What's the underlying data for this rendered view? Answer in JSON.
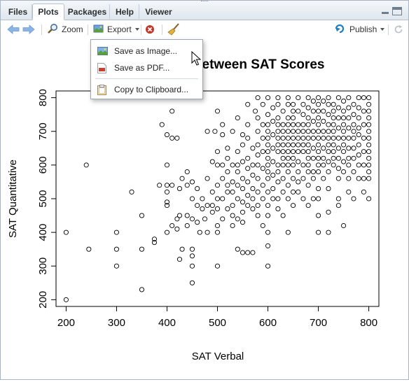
{
  "tabs": [
    {
      "label": "Files",
      "active": false
    },
    {
      "label": "Plots",
      "active": true
    },
    {
      "label": "Packages",
      "active": false
    },
    {
      "label": "Help",
      "active": false
    },
    {
      "label": "Viewer",
      "active": false
    }
  ],
  "toolbar": {
    "zoom_label": "Zoom",
    "export_label": "Export",
    "publish_label": "Publish",
    "icons": [
      "back-arrow-icon",
      "forward-arrow-icon",
      "zoom-icon",
      "export-icon",
      "remove-plot-icon",
      "clear-all-broom-icon",
      "publish-icon",
      "refresh-icon"
    ]
  },
  "export_menu": {
    "items": [
      {
        "label": "Save as Image...",
        "icon": "image-icon"
      },
      {
        "label": "Save as PDF...",
        "icon": "pdf-icon"
      },
      {
        "label": "Copy to Clipboard...",
        "icon": "clipboard-icon"
      }
    ]
  },
  "colors": {
    "accent_blue": "#3a7bd5",
    "remove_red": "#c0392b",
    "publish_blue": "#1e7fc3"
  },
  "chart_data": {
    "type": "scatter",
    "title": "Relationship between SAT Scores",
    "title_visible": "etween SAT Scores",
    "xlabel": "SAT Verbal",
    "ylabel": "SAT Quantitative",
    "xlim": [
      180,
      820
    ],
    "ylim": [
      180,
      820
    ],
    "xticks": [
      "200",
      "300",
      "400",
      "500",
      "600",
      "700",
      "800"
    ],
    "yticks": [
      "200",
      "300",
      "400",
      "500",
      "600",
      "700",
      "800"
    ],
    "marker": "open-circle",
    "points": [
      [
        200,
        200
      ],
      [
        200,
        400
      ],
      [
        245,
        350
      ],
      [
        240,
        600
      ],
      [
        300,
        400
      ],
      [
        300,
        350
      ],
      [
        300,
        300
      ],
      [
        330,
        520
      ],
      [
        350,
        450
      ],
      [
        350,
        350
      ],
      [
        350,
        230
      ],
      [
        375,
        380
      ],
      [
        375,
        370
      ],
      [
        385,
        540
      ],
      [
        390,
        720
      ],
      [
        400,
        690
      ],
      [
        400,
        600
      ],
      [
        400,
        540
      ],
      [
        400,
        520
      ],
      [
        400,
        490
      ],
      [
        400,
        480
      ],
      [
        400,
        400
      ],
      [
        410,
        760
      ],
      [
        410,
        680
      ],
      [
        410,
        540
      ],
      [
        410,
        420
      ],
      [
        420,
        680
      ],
      [
        420,
        440
      ],
      [
        420,
        410
      ],
      [
        425,
        530
      ],
      [
        425,
        450
      ],
      [
        425,
        320
      ],
      [
        430,
        560
      ],
      [
        430,
        350
      ],
      [
        440,
        580
      ],
      [
        440,
        540
      ],
      [
        440,
        450
      ],
      [
        440,
        420
      ],
      [
        450,
        550
      ],
      [
        450,
        500
      ],
      [
        450,
        440
      ],
      [
        450,
        350
      ],
      [
        450,
        330
      ],
      [
        450,
        300
      ],
      [
        450,
        250
      ],
      [
        460,
        530
      ],
      [
        460,
        480
      ],
      [
        460,
        430
      ],
      [
        465,
        400
      ],
      [
        470,
        500
      ],
      [
        470,
        470
      ],
      [
        475,
        440
      ],
      [
        480,
        700
      ],
      [
        480,
        560
      ],
      [
        480,
        480
      ],
      [
        480,
        400
      ],
      [
        490,
        610
      ],
      [
        490,
        520
      ],
      [
        490,
        480
      ],
      [
        490,
        460
      ],
      [
        495,
        700
      ],
      [
        500,
        760
      ],
      [
        500,
        640
      ],
      [
        500,
        600
      ],
      [
        500,
        540
      ],
      [
        500,
        500
      ],
      [
        500,
        470
      ],
      [
        500,
        420
      ],
      [
        500,
        400
      ],
      [
        500,
        300
      ],
      [
        510,
        720
      ],
      [
        510,
        690
      ],
      [
        510,
        600
      ],
      [
        510,
        560
      ],
      [
        510,
        500
      ],
      [
        510,
        440
      ],
      [
        520,
        650
      ],
      [
        520,
        620
      ],
      [
        520,
        580
      ],
      [
        520,
        540
      ],
      [
        520,
        520
      ],
      [
        520,
        470
      ],
      [
        530,
        700
      ],
      [
        530,
        600
      ],
      [
        530,
        550
      ],
      [
        530,
        520
      ],
      [
        530,
        480
      ],
      [
        530,
        450
      ],
      [
        530,
        420
      ],
      [
        540,
        740
      ],
      [
        540,
        640
      ],
      [
        540,
        600
      ],
      [
        540,
        580
      ],
      [
        540,
        540
      ],
      [
        540,
        500
      ],
      [
        540,
        440
      ],
      [
        540,
        350
      ],
      [
        550,
        690
      ],
      [
        550,
        660
      ],
      [
        550,
        610
      ],
      [
        550,
        560
      ],
      [
        550,
        530
      ],
      [
        550,
        490
      ],
      [
        550,
        460
      ],
      [
        550,
        430
      ],
      [
        550,
        340
      ],
      [
        560,
        780
      ],
      [
        560,
        720
      ],
      [
        560,
        680
      ],
      [
        560,
        620
      ],
      [
        560,
        590
      ],
      [
        560,
        550
      ],
      [
        560,
        510
      ],
      [
        560,
        480
      ],
      [
        560,
        340
      ],
      [
        570,
        650
      ],
      [
        570,
        600
      ],
      [
        570,
        570
      ],
      [
        570,
        530
      ],
      [
        570,
        500
      ],
      [
        570,
        470
      ],
      [
        570,
        340
      ],
      [
        575,
        760
      ],
      [
        580,
        800
      ],
      [
        580,
        740
      ],
      [
        580,
        700
      ],
      [
        580,
        660
      ],
      [
        580,
        630
      ],
      [
        580,
        600
      ],
      [
        580,
        560
      ],
      [
        580,
        520
      ],
      [
        580,
        480
      ],
      [
        580,
        450
      ],
      [
        590,
        780
      ],
      [
        590,
        720
      ],
      [
        590,
        680
      ],
      [
        590,
        640
      ],
      [
        590,
        590
      ],
      [
        590,
        540
      ],
      [
        590,
        500
      ],
      [
        590,
        420
      ],
      [
        600,
        800
      ],
      [
        600,
        750
      ],
      [
        600,
        720
      ],
      [
        600,
        700
      ],
      [
        600,
        680
      ],
      [
        600,
        660
      ],
      [
        600,
        640
      ],
      [
        600,
        620
      ],
      [
        600,
        600
      ],
      [
        600,
        580
      ],
      [
        600,
        560
      ],
      [
        600,
        520
      ],
      [
        600,
        480
      ],
      [
        600,
        450
      ],
      [
        600,
        400
      ],
      [
        600,
        360
      ],
      [
        600,
        300
      ],
      [
        610,
        770
      ],
      [
        610,
        730
      ],
      [
        610,
        690
      ],
      [
        610,
        650
      ],
      [
        610,
        610
      ],
      [
        610,
        570
      ],
      [
        610,
        530
      ],
      [
        610,
        500
      ],
      [
        620,
        800
      ],
      [
        620,
        780
      ],
      [
        620,
        740
      ],
      [
        620,
        720
      ],
      [
        620,
        700
      ],
      [
        620,
        680
      ],
      [
        620,
        660
      ],
      [
        620,
        640
      ],
      [
        620,
        600
      ],
      [
        620,
        580
      ],
      [
        620,
        550
      ],
      [
        620,
        500
      ],
      [
        620,
        470
      ],
      [
        630,
        760
      ],
      [
        630,
        720
      ],
      [
        630,
        700
      ],
      [
        630,
        680
      ],
      [
        630,
        660
      ],
      [
        630,
        640
      ],
      [
        630,
        620
      ],
      [
        630,
        600
      ],
      [
        630,
        560
      ],
      [
        630,
        520
      ],
      [
        630,
        450
      ],
      [
        640,
        800
      ],
      [
        640,
        780
      ],
      [
        640,
        740
      ],
      [
        640,
        720
      ],
      [
        640,
        700
      ],
      [
        640,
        680
      ],
      [
        640,
        660
      ],
      [
        640,
        640
      ],
      [
        640,
        620
      ],
      [
        640,
        600
      ],
      [
        640,
        580
      ],
      [
        640,
        540
      ],
      [
        640,
        500
      ],
      [
        640,
        400
      ],
      [
        650,
        780
      ],
      [
        650,
        760
      ],
      [
        650,
        740
      ],
      [
        650,
        720
      ],
      [
        650,
        700
      ],
      [
        650,
        680
      ],
      [
        650,
        660
      ],
      [
        650,
        640
      ],
      [
        650,
        620
      ],
      [
        650,
        600
      ],
      [
        650,
        560
      ],
      [
        650,
        520
      ],
      [
        650,
        480
      ],
      [
        660,
        800
      ],
      [
        660,
        760
      ],
      [
        660,
        720
      ],
      [
        660,
        700
      ],
      [
        660,
        680
      ],
      [
        660,
        660
      ],
      [
        660,
        640
      ],
      [
        660,
        610
      ],
      [
        660,
        580
      ],
      [
        660,
        550
      ],
      [
        660,
        520
      ],
      [
        670,
        780
      ],
      [
        670,
        750
      ],
      [
        670,
        720
      ],
      [
        670,
        700
      ],
      [
        670,
        680
      ],
      [
        670,
        660
      ],
      [
        670,
        640
      ],
      [
        670,
        600
      ],
      [
        670,
        560
      ],
      [
        670,
        500
      ],
      [
        680,
        800
      ],
      [
        680,
        770
      ],
      [
        680,
        740
      ],
      [
        680,
        720
      ],
      [
        680,
        700
      ],
      [
        680,
        680
      ],
      [
        680,
        660
      ],
      [
        680,
        640
      ],
      [
        680,
        620
      ],
      [
        680,
        600
      ],
      [
        680,
        580
      ],
      [
        680,
        540
      ],
      [
        680,
        480
      ],
      [
        690,
        790
      ],
      [
        690,
        760
      ],
      [
        690,
        730
      ],
      [
        690,
        700
      ],
      [
        690,
        680
      ],
      [
        690,
        650
      ],
      [
        690,
        620
      ],
      [
        690,
        580
      ],
      [
        690,
        560
      ],
      [
        690,
        500
      ],
      [
        700,
        800
      ],
      [
        700,
        780
      ],
      [
        700,
        760
      ],
      [
        700,
        740
      ],
      [
        700,
        720
      ],
      [
        700,
        700
      ],
      [
        700,
        680
      ],
      [
        700,
        660
      ],
      [
        700,
        640
      ],
      [
        700,
        620
      ],
      [
        700,
        600
      ],
      [
        700,
        580
      ],
      [
        700,
        530
      ],
      [
        700,
        500
      ],
      [
        700,
        450
      ],
      [
        700,
        400
      ],
      [
        710,
        790
      ],
      [
        710,
        760
      ],
      [
        710,
        730
      ],
      [
        710,
        700
      ],
      [
        710,
        680
      ],
      [
        710,
        650
      ],
      [
        710,
        620
      ],
      [
        710,
        600
      ],
      [
        710,
        560
      ],
      [
        720,
        800
      ],
      [
        720,
        780
      ],
      [
        720,
        750
      ],
      [
        720,
        720
      ],
      [
        720,
        700
      ],
      [
        720,
        680
      ],
      [
        720,
        660
      ],
      [
        720,
        640
      ],
      [
        720,
        610
      ],
      [
        720,
        580
      ],
      [
        720,
        530
      ],
      [
        720,
        460
      ],
      [
        720,
        400
      ],
      [
        730,
        780
      ],
      [
        730,
        760
      ],
      [
        730,
        740
      ],
      [
        730,
        720
      ],
      [
        730,
        700
      ],
      [
        730,
        680
      ],
      [
        730,
        660
      ],
      [
        730,
        640
      ],
      [
        730,
        620
      ],
      [
        730,
        600
      ],
      [
        740,
        800
      ],
      [
        740,
        770
      ],
      [
        740,
        740
      ],
      [
        740,
        710
      ],
      [
        740,
        680
      ],
      [
        740,
        650
      ],
      [
        740,
        620
      ],
      [
        740,
        590
      ],
      [
        740,
        560
      ],
      [
        740,
        500
      ],
      [
        740,
        480
      ],
      [
        750,
        790
      ],
      [
        750,
        760
      ],
      [
        750,
        740
      ],
      [
        750,
        720
      ],
      [
        750,
        700
      ],
      [
        750,
        680
      ],
      [
        750,
        660
      ],
      [
        750,
        640
      ],
      [
        750,
        610
      ],
      [
        750,
        580
      ],
      [
        750,
        420
      ],
      [
        760,
        800
      ],
      [
        760,
        770
      ],
      [
        760,
        740
      ],
      [
        760,
        710
      ],
      [
        760,
        680
      ],
      [
        760,
        650
      ],
      [
        760,
        620
      ],
      [
        760,
        600
      ],
      [
        760,
        560
      ],
      [
        760,
        520
      ],
      [
        770,
        780
      ],
      [
        770,
        750
      ],
      [
        770,
        720
      ],
      [
        770,
        700
      ],
      [
        770,
        680
      ],
      [
        770,
        650
      ],
      [
        770,
        620
      ],
      [
        770,
        580
      ],
      [
        770,
        500
      ],
      [
        780,
        800
      ],
      [
        780,
        770
      ],
      [
        780,
        740
      ],
      [
        780,
        710
      ],
      [
        780,
        690
      ],
      [
        780,
        660
      ],
      [
        780,
        630
      ],
      [
        780,
        600
      ],
      [
        780,
        560
      ],
      [
        790,
        800
      ],
      [
        790,
        760
      ],
      [
        790,
        720
      ],
      [
        790,
        680
      ],
      [
        790,
        640
      ],
      [
        790,
        600
      ],
      [
        790,
        560
      ],
      [
        790,
        520
      ],
      [
        800,
        800
      ],
      [
        800,
        780
      ],
      [
        800,
        760
      ],
      [
        800,
        740
      ],
      [
        800,
        720
      ],
      [
        800,
        700
      ],
      [
        800,
        680
      ],
      [
        800,
        660
      ],
      [
        800,
        640
      ],
      [
        800,
        620
      ],
      [
        800,
        600
      ],
      [
        800,
        580
      ],
      [
        800,
        560
      ],
      [
        800,
        500
      ]
    ]
  }
}
